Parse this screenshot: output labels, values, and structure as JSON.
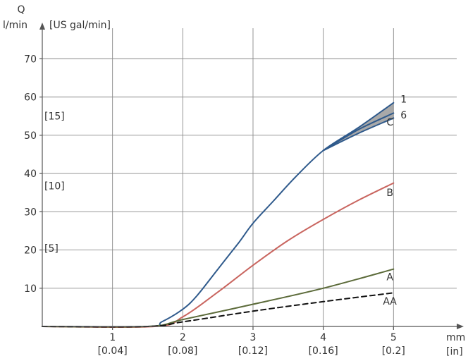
{
  "chart_data": {
    "type": "line",
    "y_unit_label": "Q",
    "y_unit_metric": "l/min",
    "y_unit_imperial": "[US gal/min]",
    "x_unit_metric": "mm",
    "x_unit_imperial": "[in]",
    "xlim": [
      0,
      5.9
    ],
    "ylim": [
      0,
      78
    ],
    "x_ticks": [
      {
        "value": 1,
        "metric": "1",
        "imperial": "[0.04]"
      },
      {
        "value": 2,
        "metric": "2",
        "imperial": "[0.08]"
      },
      {
        "value": 3,
        "metric": "3",
        "imperial": "[0.12]"
      },
      {
        "value": 4,
        "metric": "4",
        "imperial": "[0.16]"
      },
      {
        "value": 5,
        "metric": "5",
        "imperial": "[0.2]"
      }
    ],
    "y_ticks": [
      {
        "value": 10,
        "label": "10"
      },
      {
        "value": 20,
        "label": "20"
      },
      {
        "value": 30,
        "label": "30"
      },
      {
        "value": 40,
        "label": "40"
      },
      {
        "value": 50,
        "label": "50"
      },
      {
        "value": 60,
        "label": "60"
      },
      {
        "value": 70,
        "label": "70"
      }
    ],
    "y_ticks_imperial": [
      {
        "value": 20.5,
        "label": "[5]"
      },
      {
        "value": 36.8,
        "label": "[10]"
      },
      {
        "value": 55.0,
        "label": "[15]"
      }
    ],
    "grid": true,
    "series": [
      {
        "name": "1",
        "color": "#2f5a8c",
        "dash": false,
        "x": [
          0,
          1.5,
          1.7,
          2.0,
          2.2,
          2.5,
          2.8,
          3.0,
          3.3,
          3.6,
          4.0,
          4.5,
          5.0
        ],
        "y": [
          0,
          0,
          1.2,
          4.5,
          8.0,
          15.0,
          22.0,
          27.0,
          33.0,
          39.0,
          46.0,
          52.0,
          58.5
        ]
      },
      {
        "name": "6",
        "color": "#2f5a8c",
        "dash": false,
        "x": [
          4.0,
          4.5,
          5.0
        ],
        "y": [
          46.0,
          51.5,
          55.8
        ]
      },
      {
        "name": "C",
        "color": "#2f5a8c",
        "dash": false,
        "x": [
          4.0,
          4.5,
          5.0
        ],
        "y": [
          46.0,
          50.5,
          54.5
        ]
      },
      {
        "name": "B",
        "color": "#c9655f",
        "dash": false,
        "x": [
          0,
          1.6,
          2.0,
          2.5,
          3.0,
          3.5,
          4.0,
          4.5,
          5.0
        ],
        "y": [
          0,
          0,
          2.5,
          9.0,
          16.0,
          22.5,
          28.0,
          33.0,
          37.5
        ]
      },
      {
        "name": "A",
        "color": "#5c6b3a",
        "dash": false,
        "x": [
          0,
          1.5,
          2.0,
          3.0,
          4.0,
          5.0
        ],
        "y": [
          0,
          0,
          1.8,
          5.8,
          10.0,
          15.0
        ]
      },
      {
        "name": "AA",
        "color": "#111111",
        "dash": true,
        "x": [
          0,
          1.5,
          2.0,
          3.0,
          4.0,
          5.0
        ],
        "y": [
          0,
          0,
          1.2,
          4.0,
          6.5,
          8.8
        ]
      }
    ],
    "shaded_band": {
      "between": [
        "1",
        "C"
      ],
      "x_from": 4.0,
      "color": "#8c8c8c"
    },
    "series_labels": [
      {
        "text": "1",
        "x": 5.1,
        "y": 59.5
      },
      {
        "text": "6",
        "x": 5.1,
        "y": 55.3
      },
      {
        "text": "C",
        "x": 4.9,
        "y": 53.5
      },
      {
        "text": "B",
        "x": 4.9,
        "y": 35.0
      },
      {
        "text": "A",
        "x": 4.9,
        "y": 13.0
      },
      {
        "text": "AA",
        "x": 4.85,
        "y": 6.6
      }
    ]
  }
}
